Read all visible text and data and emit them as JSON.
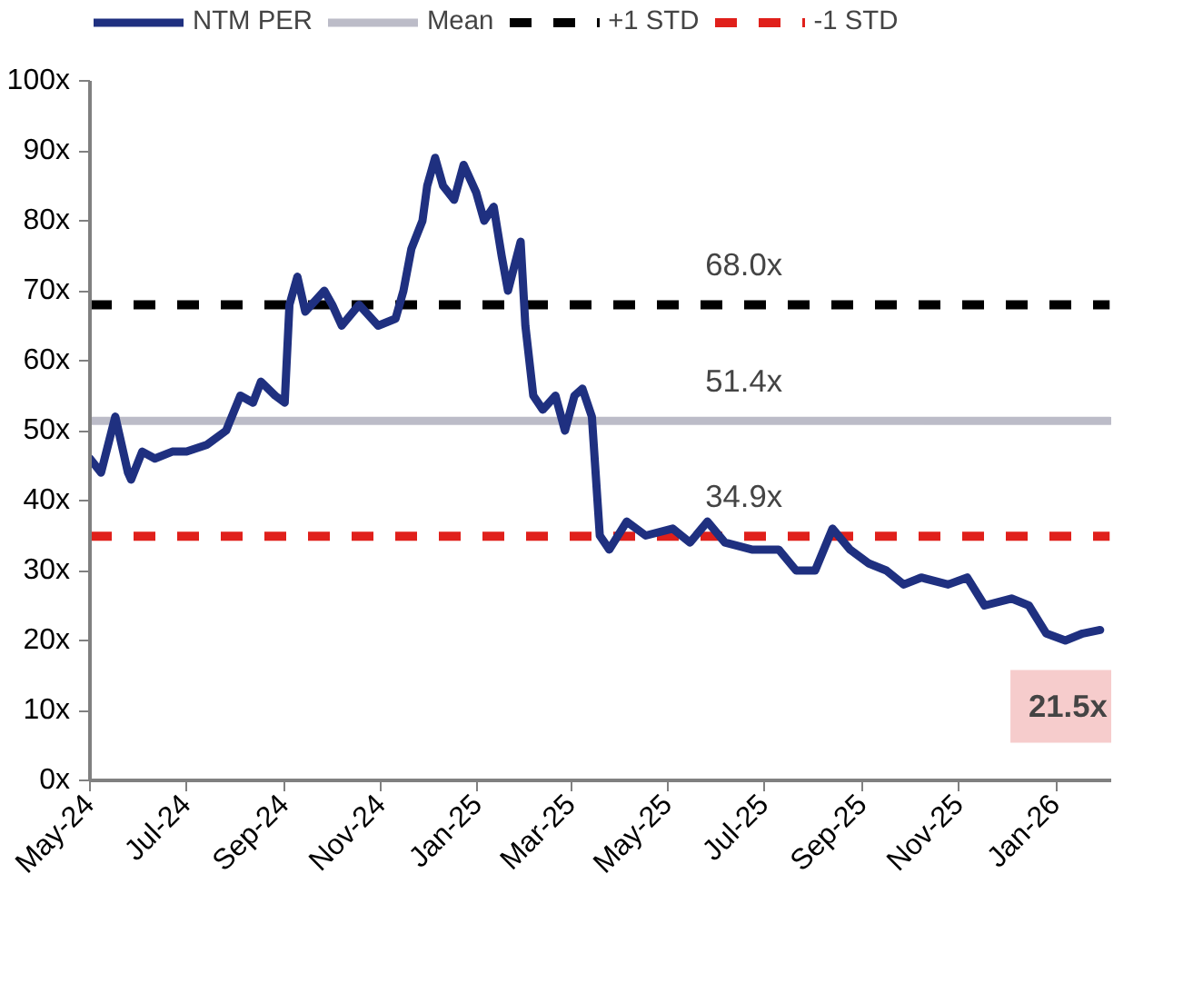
{
  "chart_data": {
    "type": "line",
    "xlim": [
      "2024-05-01",
      "2026-02-05"
    ],
    "ylim": [
      0,
      100
    ],
    "xticks": [
      {
        "value": "2024-05-01",
        "label": "May-24"
      },
      {
        "value": "2024-07-01",
        "label": "Jul-24"
      },
      {
        "value": "2024-09-01",
        "label": "Sep-24"
      },
      {
        "value": "2024-11-01",
        "label": "Nov-24"
      },
      {
        "value": "2025-01-01",
        "label": "Jan-25"
      },
      {
        "value": "2025-03-01",
        "label": "Mar-25"
      },
      {
        "value": "2025-05-01",
        "label": "May-25"
      },
      {
        "value": "2025-07-01",
        "label": "Jul-25"
      },
      {
        "value": "2025-09-01",
        "label": "Sep-25"
      },
      {
        "value": "2025-11-01",
        "label": "Nov-25"
      },
      {
        "value": "2026-01-01",
        "label": "Jan-26"
      }
    ],
    "yticks": [
      {
        "value": 0,
        "label": "0x"
      },
      {
        "value": 10,
        "label": "10x"
      },
      {
        "value": 20,
        "label": "20x"
      },
      {
        "value": 30,
        "label": "30x"
      },
      {
        "value": 40,
        "label": "40x"
      },
      {
        "value": 50,
        "label": "50x"
      },
      {
        "value": 60,
        "label": "60x"
      },
      {
        "value": 70,
        "label": "70x"
      },
      {
        "value": 80,
        "label": "80x"
      },
      {
        "value": 90,
        "label": "90x"
      },
      {
        "value": 100,
        "label": "100x"
      }
    ],
    "grid": false,
    "legend": "top",
    "series": [
      {
        "name": "NTM PER",
        "color": "#1f3080",
        "line_style": "solid",
        "x": [
          "2024-05-01",
          "2024-05-08",
          "2024-05-17",
          "2024-05-25",
          "2024-05-27",
          "2024-06-03",
          "2024-06-11",
          "2024-06-22",
          "2024-07-01",
          "2024-07-14",
          "2024-07-26",
          "2024-08-04",
          "2024-08-12",
          "2024-08-17",
          "2024-08-26",
          "2024-09-01",
          "2024-09-04",
          "2024-09-09",
          "2024-09-14",
          "2024-09-26",
          "2024-10-01",
          "2024-10-07",
          "2024-10-18",
          "2024-10-30",
          "2024-11-10",
          "2024-11-15",
          "2024-11-20",
          "2024-11-27",
          "2024-11-30",
          "2024-12-05",
          "2024-12-10",
          "2024-12-17",
          "2024-12-23",
          "2024-12-31",
          "2025-01-05",
          "2025-01-11",
          "2025-01-16",
          "2025-01-20",
          "2025-01-28",
          "2025-01-31",
          "2025-02-05",
          "2025-02-11",
          "2025-02-19",
          "2025-02-25",
          "2025-03-03",
          "2025-03-08",
          "2025-03-14",
          "2025-03-19",
          "2025-03-25",
          "2025-04-05",
          "2025-04-17",
          "2025-05-04",
          "2025-05-15",
          "2025-05-26",
          "2025-06-06",
          "2025-06-23",
          "2025-07-10",
          "2025-07-21",
          "2025-08-02",
          "2025-08-13",
          "2025-08-24",
          "2025-09-05",
          "2025-09-16",
          "2025-09-27",
          "2025-10-08",
          "2025-10-25",
          "2025-11-06",
          "2025-11-17",
          "2025-12-04",
          "2025-12-15",
          "2025-12-26",
          "2026-01-07",
          "2026-01-18",
          "2026-01-29"
        ],
        "values": [
          46,
          44,
          52,
          44,
          43,
          47,
          46,
          47,
          47,
          48,
          50,
          55,
          54,
          57,
          55,
          54,
          68,
          72,
          67,
          70,
          68,
          65,
          68,
          65,
          66,
          70,
          76,
          80,
          85,
          89,
          85,
          83,
          88,
          84,
          80,
          82,
          75,
          70,
          77,
          65,
          55,
          53,
          55,
          50,
          55,
          56,
          52,
          35,
          33,
          37,
          35,
          36,
          34,
          37,
          34,
          33,
          33,
          30,
          30,
          36,
          33,
          31,
          30,
          28,
          29,
          28,
          29,
          25,
          26,
          25,
          21,
          20,
          21,
          21.5
        ]
      },
      {
        "name": "Mean",
        "color": "#bcbcc8",
        "line_style": "solid",
        "x": [
          "2024-05-01",
          "2026-02-04"
        ],
        "values": [
          51.4,
          51.4
        ]
      },
      {
        "name": "+1 STD",
        "color": "#000000",
        "line_style": "dashed",
        "x": [
          "2024-05-01",
          "2026-02-04"
        ],
        "values": [
          68.0,
          68.0
        ]
      },
      {
        "name": "-1 STD",
        "color": "#e0201b",
        "line_style": "dashed",
        "x": [
          "2024-05-01",
          "2026-02-04"
        ],
        "values": [
          34.9,
          34.9
        ]
      }
    ],
    "annotations": [
      {
        "text": "68.0x",
        "x": "2025-06-18",
        "y": 68.0
      },
      {
        "text": "51.4x",
        "x": "2025-06-18",
        "y": 51.4
      },
      {
        "text": "34.9x",
        "x": "2025-06-18",
        "y": 34.9
      },
      {
        "text": "21.5x",
        "x": "2026-01-29",
        "y": 21.5
      }
    ]
  }
}
